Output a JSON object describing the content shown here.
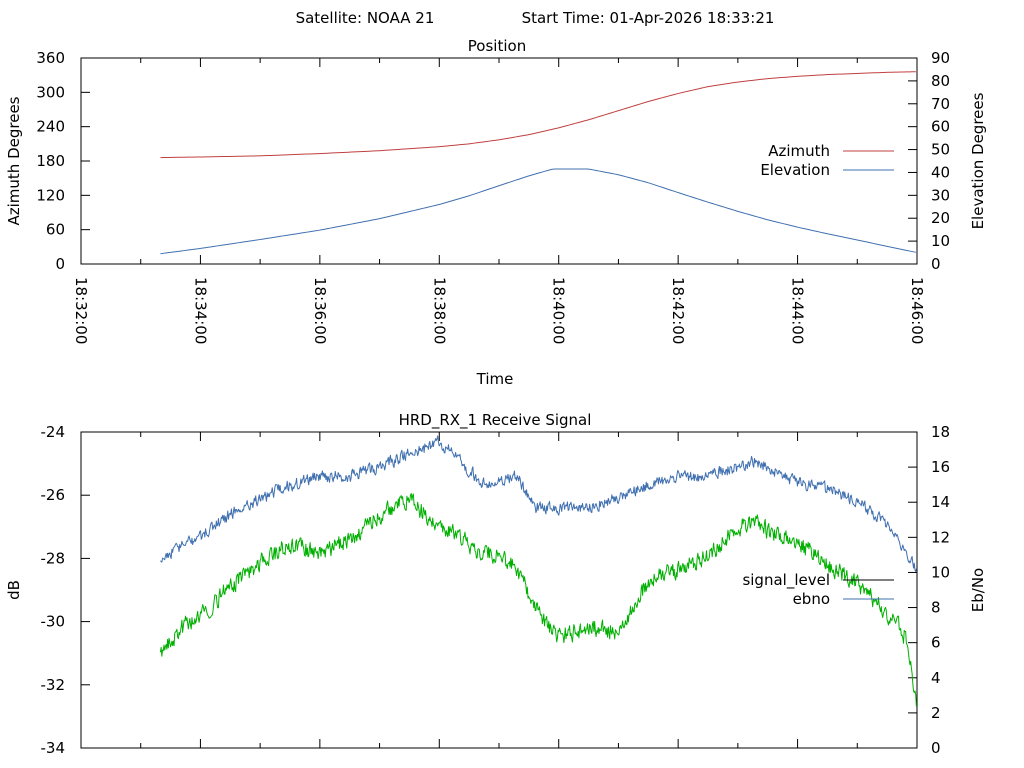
{
  "header": {
    "satellite": "Satellite: NOAA 21",
    "start_time": "Start Time: 01-Apr-2026 18:33:21"
  },
  "chart_data": [
    {
      "type": "line",
      "title": "Position",
      "xlabel": "Time",
      "ylabel": "Azimuth Degrees",
      "y2label": "Elevation Degrees",
      "xlim": [
        "18:32:00",
        "18:46:00"
      ],
      "x_tick_labels": [
        "18:32:00",
        "18:34:00",
        "18:36:00",
        "18:38:00",
        "18:40:00",
        "18:42:00",
        "18:44:00",
        "18:46:00"
      ],
      "ylim": [
        0,
        360
      ],
      "y_ticks": [
        0,
        60,
        120,
        180,
        240,
        300,
        360
      ],
      "y2lim": [
        0,
        90
      ],
      "y2_ticks": [
        0,
        10,
        20,
        30,
        40,
        50,
        60,
        70,
        80,
        90
      ],
      "legend_position": "right",
      "series": [
        {
          "name": "Azimuth",
          "axis": "left",
          "color": "#c04040",
          "x_minutes": [
            1.33,
            2,
            3,
            4,
            5,
            6,
            6.5,
            7,
            7.5,
            8,
            8.5,
            9,
            9.5,
            10,
            10.5,
            11,
            11.5,
            12,
            12.5,
            13,
            13.5,
            14
          ],
          "values": [
            186,
            187,
            189,
            193,
            198,
            205,
            210,
            217,
            226,
            238,
            252,
            268,
            284,
            298,
            310,
            318,
            324,
            328,
            331,
            333,
            335,
            336
          ]
        },
        {
          "name": "Elevation",
          "axis": "right",
          "color": "#4070b0",
          "x_minutes": [
            1.33,
            2,
            3,
            4,
            5,
            6,
            6.5,
            7,
            7.5,
            7.9,
            8.5,
            9,
            9.5,
            10,
            10.5,
            11,
            11.5,
            12,
            12.5,
            13,
            13.5,
            14
          ],
          "values": [
            4.5,
            6.8,
            10.7,
            14.8,
            19.8,
            26,
            29.8,
            34.2,
            38.5,
            41.5,
            41.5,
            39,
            35.5,
            31.2,
            27,
            23,
            19.3,
            16.1,
            13.2,
            10.5,
            7.7,
            5
          ]
        }
      ]
    },
    {
      "type": "line",
      "title": "HRD_RX_1 Receive Signal",
      "xlabel": "",
      "ylabel": "dB",
      "y2label": "Eb/No",
      "xlim": [
        "18:32:00",
        "18:46:00"
      ],
      "ylim": [
        -34,
        -24
      ],
      "y_ticks": [
        -24,
        -26,
        -28,
        -30,
        -32,
        -34
      ],
      "y2lim": [
        0,
        18
      ],
      "y2_ticks": [
        0,
        2,
        4,
        6,
        8,
        10,
        12,
        14,
        16,
        18
      ],
      "legend_position": "right",
      "series": [
        {
          "name": "signal_level",
          "axis": "left",
          "color": "#4070b0",
          "x_minutes": [
            1.33,
            1.6,
            2,
            2.5,
            3,
            3.5,
            4,
            4.5,
            5,
            5.5,
            6,
            6.4,
            6.7,
            7,
            7.3,
            7.6,
            8,
            8.5,
            9,
            9.5,
            10,
            10.5,
            11,
            11.3,
            11.6,
            12,
            12.5,
            13,
            13.5,
            14
          ],
          "values": [
            -28,
            -27.7,
            -27.3,
            -26.6,
            -26.1,
            -25.7,
            -25.4,
            -25.4,
            -25.1,
            -24.7,
            -24.3,
            -25,
            -25.6,
            -25.6,
            -25.4,
            -26.4,
            -26.4,
            -26.4,
            -26.1,
            -25.7,
            -25.4,
            -25.4,
            -25.1,
            -24.9,
            -25.2,
            -25.6,
            -25.8,
            -26.2,
            -26.9,
            -28.4
          ]
        },
        {
          "name": "ebno",
          "axis": "right",
          "color": "#00b000",
          "x_minutes": [
            1.33,
            1.5,
            1.8,
            2,
            2.5,
            3,
            3.5,
            4,
            4.5,
            5,
            5.5,
            5.8,
            6,
            6.3,
            6.6,
            7,
            7.3,
            7.6,
            8,
            8.5,
            9,
            9.5,
            10,
            10.5,
            11,
            11.3,
            11.6,
            12,
            12.5,
            13,
            13.5,
            13.8,
            14
          ],
          "values": [
            5.3,
            6,
            7.2,
            7.5,
            9.2,
            10.6,
            11.6,
            11.1,
            11.9,
            13.2,
            14.3,
            13.1,
            12.6,
            12.3,
            11.3,
            10.9,
            10.2,
            8,
            6.3,
            6.9,
            6.6,
            9.5,
            10.2,
            10.9,
            12.6,
            12.9,
            12.1,
            11.7,
            10.4,
            9.4,
            7.7,
            6.4,
            2.5
          ]
        }
      ]
    }
  ]
}
